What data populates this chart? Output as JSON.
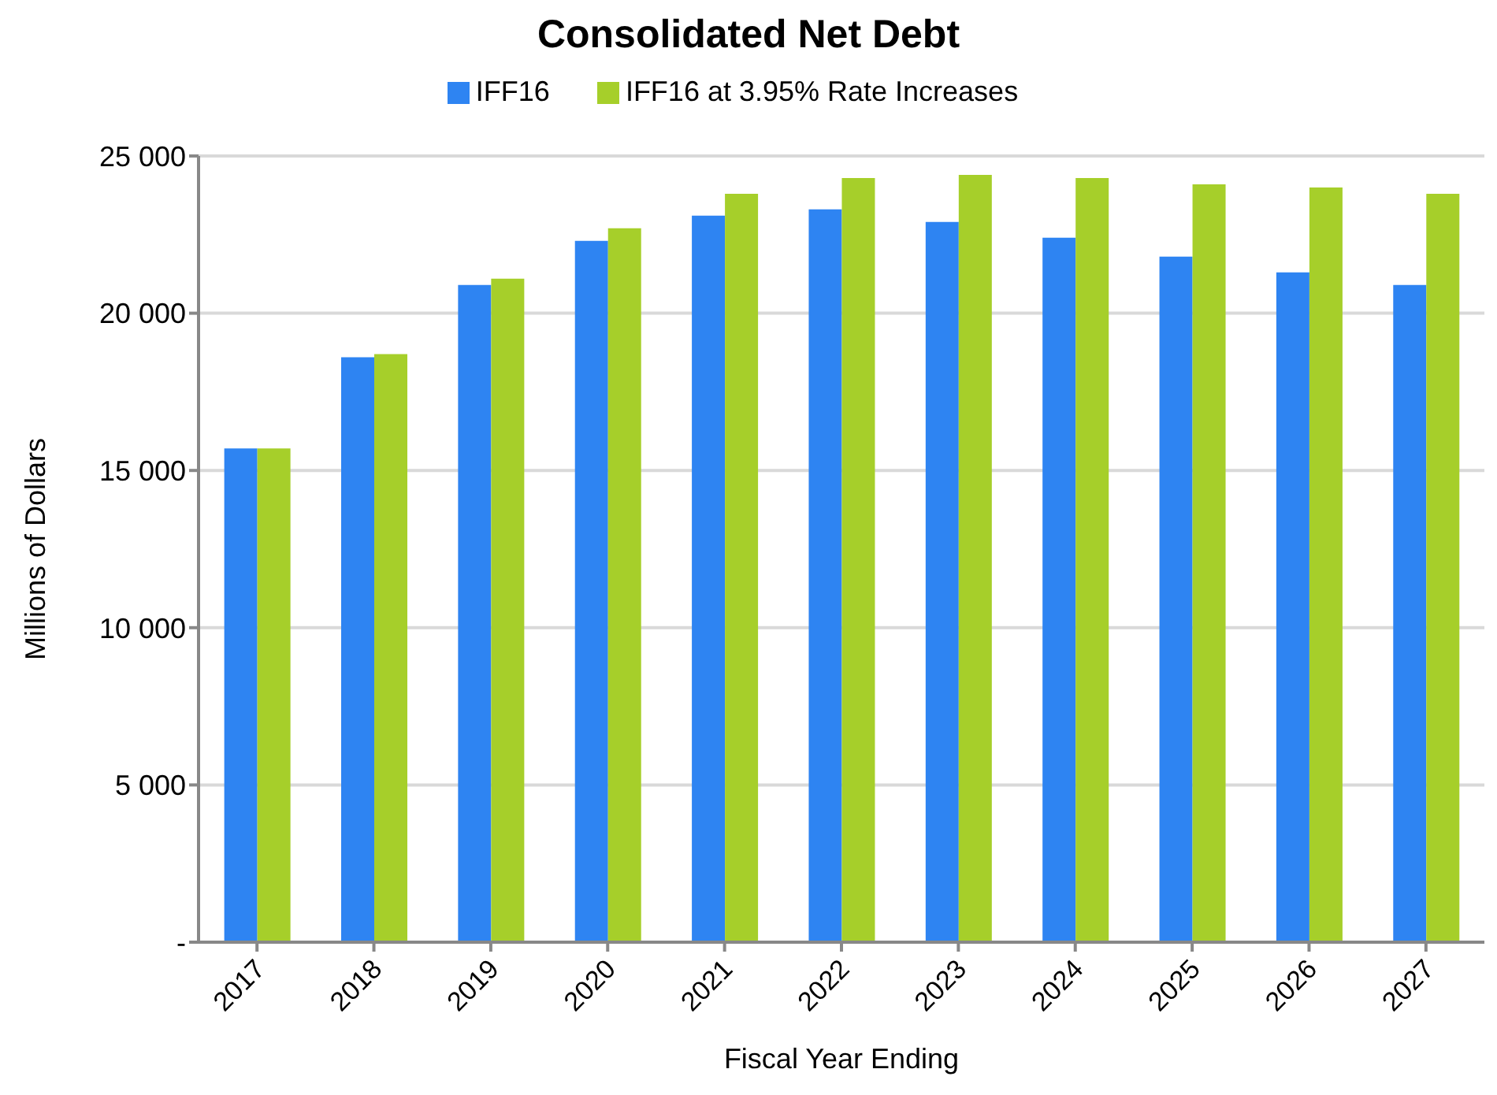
{
  "chart_data": {
    "type": "bar",
    "title": "Consolidated Net Debt",
    "xlabel": "Fiscal Year  Ending",
    "ylabel": "Millions of Dollars",
    "categories": [
      "2017",
      "2018",
      "2019",
      "2020",
      "2021",
      "2022",
      "2023",
      "2024",
      "2025",
      "2026",
      "2027"
    ],
    "series": [
      {
        "name": "IFF16",
        "color": "#2e84f2",
        "values": [
          15700,
          18600,
          20900,
          22300,
          23100,
          23300,
          22900,
          22400,
          21800,
          21300,
          20900
        ]
      },
      {
        "name": "IFF16 at 3.95% Rate Increases",
        "color": "#a6cf2a",
        "values": [
          15700,
          18700,
          21100,
          22700,
          23800,
          24300,
          24400,
          24300,
          24100,
          24000,
          23800
        ]
      }
    ],
    "ylim": [
      0,
      25000
    ],
    "yticks": [
      {
        "value": 0,
        "label": "-"
      },
      {
        "value": 5000,
        "label": "5 000"
      },
      {
        "value": 10000,
        "label": "10 000"
      },
      {
        "value": 15000,
        "label": "15 000"
      },
      {
        "value": 20000,
        "label": "20 000"
      },
      {
        "value": 25000,
        "label": "25 000"
      }
    ],
    "grid": "y",
    "legend": "top"
  }
}
